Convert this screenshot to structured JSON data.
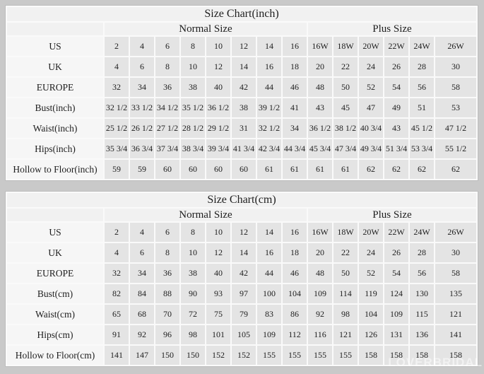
{
  "watermark": "LOVERBRIDAL",
  "colors": {
    "page_bg": "#c9c9c9",
    "header_bg": "#f1f1f1",
    "label_bg": "#f6f6f6",
    "cell_bg": "#e4e4e4",
    "grid": "#fafafa",
    "table_border": "#bdbdbd",
    "text": "#1e1e1e"
  },
  "chart_data": [
    {
      "type": "table",
      "title": "Size Chart(inch)",
      "column_groups": [
        {
          "label": "Normal Size",
          "span": 8
        },
        {
          "label": "Plus Size",
          "span": 6
        }
      ],
      "rows": [
        {
          "label": "US",
          "values": [
            "2",
            "4",
            "6",
            "8",
            "10",
            "12",
            "14",
            "16",
            "16W",
            "18W",
            "20W",
            "22W",
            "24W",
            "26W"
          ]
        },
        {
          "label": "UK",
          "values": [
            "4",
            "6",
            "8",
            "10",
            "12",
            "14",
            "16",
            "18",
            "20",
            "22",
            "24",
            "26",
            "28",
            "30"
          ]
        },
        {
          "label": "EUROPE",
          "values": [
            "32",
            "34",
            "36",
            "38",
            "40",
            "42",
            "44",
            "46",
            "48",
            "50",
            "52",
            "54",
            "56",
            "58"
          ]
        },
        {
          "label": "Bust(inch)",
          "values": [
            "32 1/2",
            "33 1/2",
            "34 1/2",
            "35 1/2",
            "36 1/2",
            "38",
            "39 1/2",
            "41",
            "43",
            "45",
            "47",
            "49",
            "51",
            "53"
          ]
        },
        {
          "label": "Waist(inch)",
          "values": [
            "25 1/2",
            "26 1/2",
            "27 1/2",
            "28 1/2",
            "29 1/2",
            "31",
            "32 1/2",
            "34",
            "36 1/2",
            "38 1/2",
            "40 3/4",
            "43",
            "45 1/2",
            "47 1/2"
          ]
        },
        {
          "label": "Hips(inch)",
          "values": [
            "35 3/4",
            "36 3/4",
            "37 3/4",
            "38 3/4",
            "39 3/4",
            "41 3/4",
            "42 3/4",
            "44 3/4",
            "45 3/4",
            "47 3/4",
            "49 3/4",
            "51 3/4",
            "53 3/4",
            "55 1/2"
          ]
        },
        {
          "label": "Hollow to Floor(inch)",
          "values": [
            "59",
            "59",
            "60",
            "60",
            "60",
            "60",
            "61",
            "61",
            "61",
            "61",
            "62",
            "62",
            "62",
            "62"
          ]
        }
      ]
    },
    {
      "type": "table",
      "title": "Size Chart(cm)",
      "column_groups": [
        {
          "label": "Normal Size",
          "span": 8
        },
        {
          "label": "Plus Size",
          "span": 6
        }
      ],
      "rows": [
        {
          "label": "US",
          "values": [
            "2",
            "4",
            "6",
            "8",
            "10",
            "12",
            "14",
            "16",
            "16W",
            "18W",
            "20W",
            "22W",
            "24W",
            "26W"
          ]
        },
        {
          "label": "UK",
          "values": [
            "4",
            "6",
            "8",
            "10",
            "12",
            "14",
            "16",
            "18",
            "20",
            "22",
            "24",
            "26",
            "28",
            "30"
          ]
        },
        {
          "label": "EUROPE",
          "values": [
            "32",
            "34",
            "36",
            "38",
            "40",
            "42",
            "44",
            "46",
            "48",
            "50",
            "52",
            "54",
            "56",
            "58"
          ]
        },
        {
          "label": "Bust(cm)",
          "values": [
            "82",
            "84",
            "88",
            "90",
            "93",
            "97",
            "100",
            "104",
            "109",
            "114",
            "119",
            "124",
            "130",
            "135"
          ]
        },
        {
          "label": "Waist(cm)",
          "values": [
            "65",
            "68",
            "70",
            "72",
            "75",
            "79",
            "83",
            "86",
            "92",
            "98",
            "104",
            "109",
            "115",
            "121"
          ]
        },
        {
          "label": "Hips(cm)",
          "values": [
            "91",
            "92",
            "96",
            "98",
            "101",
            "105",
            "109",
            "112",
            "116",
            "121",
            "126",
            "131",
            "136",
            "141"
          ]
        },
        {
          "label": "Hollow to Floor(cm)",
          "values": [
            "141",
            "147",
            "150",
            "150",
            "152",
            "152",
            "155",
            "155",
            "155",
            "155",
            "158",
            "158",
            "158",
            "158"
          ]
        }
      ]
    }
  ]
}
